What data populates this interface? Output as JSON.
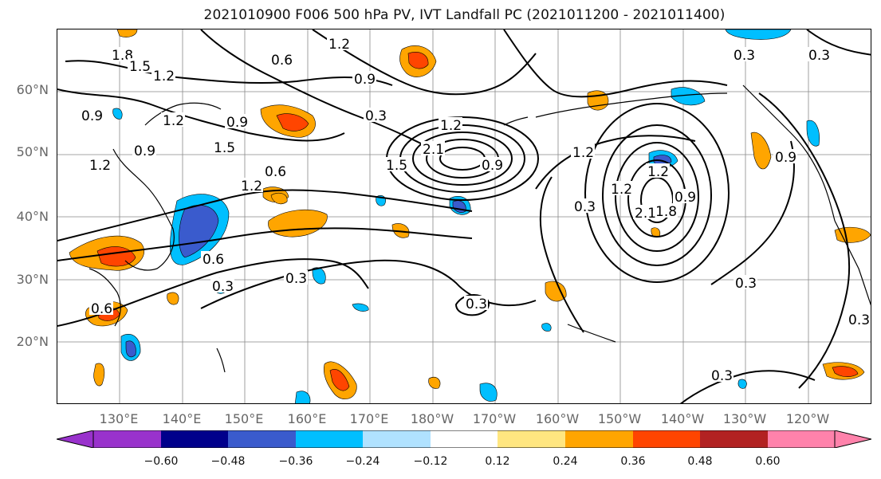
{
  "title": "2021010900 F006 500 hPa PV, IVT Landfall PC (2021011200 - 2021011400)",
  "lat_labels": [
    "60°N",
    "50°N",
    "40°N",
    "30°N",
    "20°N"
  ],
  "lon_labels": [
    "130°E",
    "140°E",
    "150°E",
    "160°E",
    "170°E",
    "180°W",
    "170°W",
    "160°W",
    "150°W",
    "140°W",
    "130°W",
    "120°W"
  ],
  "colorbar": {
    "tick_labels": [
      "−0.60",
      "−0.48",
      "−0.36",
      "−0.24",
      "−0.12",
      "0.12",
      "0.24",
      "0.36",
      "0.48",
      "0.60"
    ],
    "colors": [
      "#9932cc",
      "#00008b",
      "#3a5bcd",
      "#00bfff",
      "#b0e2ff",
      "#ffffff",
      "#ffe680",
      "#ffa500",
      "#ff4500",
      "#b22222",
      "#ff82ab"
    ]
  },
  "contour_labels": [
    "1.2",
    "0.6",
    "0.9",
    "1.8",
    "1.5",
    "1.2",
    "0.9",
    "0.3",
    "0.9",
    "1.2",
    "0.9",
    "1.5",
    "1.2",
    "0.6",
    "1.2",
    "0.6",
    "1.2",
    "2.1",
    "1.5",
    "0.9",
    "1.2",
    "1.2",
    "0.3",
    "1.2",
    "1.8",
    "2.1",
    "0.9",
    "0.3",
    "0.3",
    "0.3",
    "0.3",
    "0.3",
    "0.3",
    "0.9",
    "0.6",
    "0.3",
    "0.3"
  ]
}
